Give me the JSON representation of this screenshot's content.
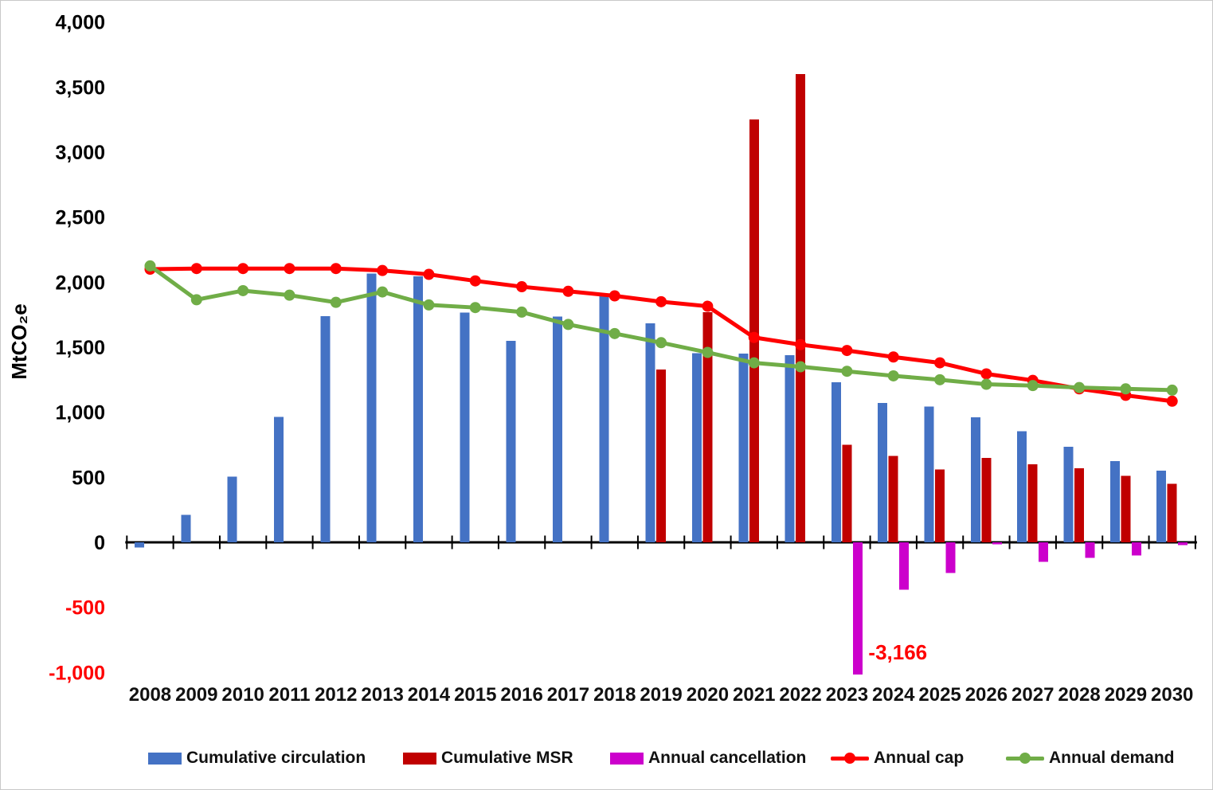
{
  "chart_data": {
    "type": "bar",
    "title": "",
    "xlabel": "",
    "ylabel": "MtCO₂e",
    "x": [
      2008,
      2009,
      2010,
      2011,
      2012,
      2013,
      2014,
      2015,
      2016,
      2017,
      2018,
      2019,
      2020,
      2021,
      2022,
      2023,
      2024,
      2025,
      2026,
      2027,
      2028,
      2029,
      2030
    ],
    "y_axis": {
      "min": -1000,
      "max": 4000,
      "step": 500,
      "negative_label_color": "#FF0000",
      "positive_label_color": "#000000"
    },
    "grid": "off",
    "legend_position": "bottom",
    "bar_series": [
      {
        "name": "Cumulative circulation",
        "color": "#4472C4",
        "values": [
          -40,
          210,
          505,
          965,
          1740,
          2065,
          2045,
          1765,
          1550,
          1735,
          1895,
          1685,
          1455,
          1450,
          1440,
          1230,
          1070,
          1045,
          960,
          855,
          735,
          625,
          550
        ]
      },
      {
        "name": "Cumulative MSR",
        "color": "#C00000",
        "values": [
          null,
          null,
          null,
          null,
          null,
          null,
          null,
          null,
          null,
          null,
          null,
          1330,
          1770,
          3250,
          3600,
          750,
          665,
          560,
          650,
          600,
          570,
          510,
          450
        ]
      },
      {
        "name": "Annual cancellation",
        "color": "#CC00CC",
        "values": [
          null,
          null,
          null,
          null,
          null,
          null,
          null,
          null,
          null,
          null,
          null,
          null,
          null,
          null,
          null,
          -3166,
          -365,
          -235,
          -15,
          -150,
          -120,
          -100,
          -20
        ]
      }
    ],
    "line_series": [
      {
        "name": "Annual cap",
        "color": "#FF0000",
        "values": [
          2100,
          2105,
          2105,
          2105,
          2105,
          2090,
          2060,
          2010,
          1965,
          1930,
          1895,
          1850,
          1815,
          1575,
          1520,
          1475,
          1425,
          1380,
          1295,
          1245,
          1180,
          1130,
          1085
        ]
      },
      {
        "name": "Annual demand",
        "color": "#70AD47",
        "values": [
          2125,
          1865,
          1935,
          1900,
          1845,
          1925,
          1825,
          1805,
          1770,
          1675,
          1605,
          1535,
          1460,
          1380,
          1350,
          1315,
          1280,
          1250,
          1215,
          1205,
          1190,
          1180,
          1170
        ]
      }
    ],
    "annotation": {
      "text": "-3,166",
      "year": 2023,
      "color": "#FF0000"
    }
  },
  "legend": {
    "items": [
      {
        "label": "Cumulative circulation",
        "marker": "rect",
        "color": "#4472C4"
      },
      {
        "label": "Cumulative MSR",
        "marker": "rect",
        "color": "#C00000"
      },
      {
        "label": "Annual cancellation",
        "marker": "rect",
        "color": "#CC00CC"
      },
      {
        "label": "Annual cap",
        "marker": "line",
        "color": "#FF0000"
      },
      {
        "label": "Annual demand",
        "marker": "line",
        "color": "#70AD47"
      }
    ]
  }
}
